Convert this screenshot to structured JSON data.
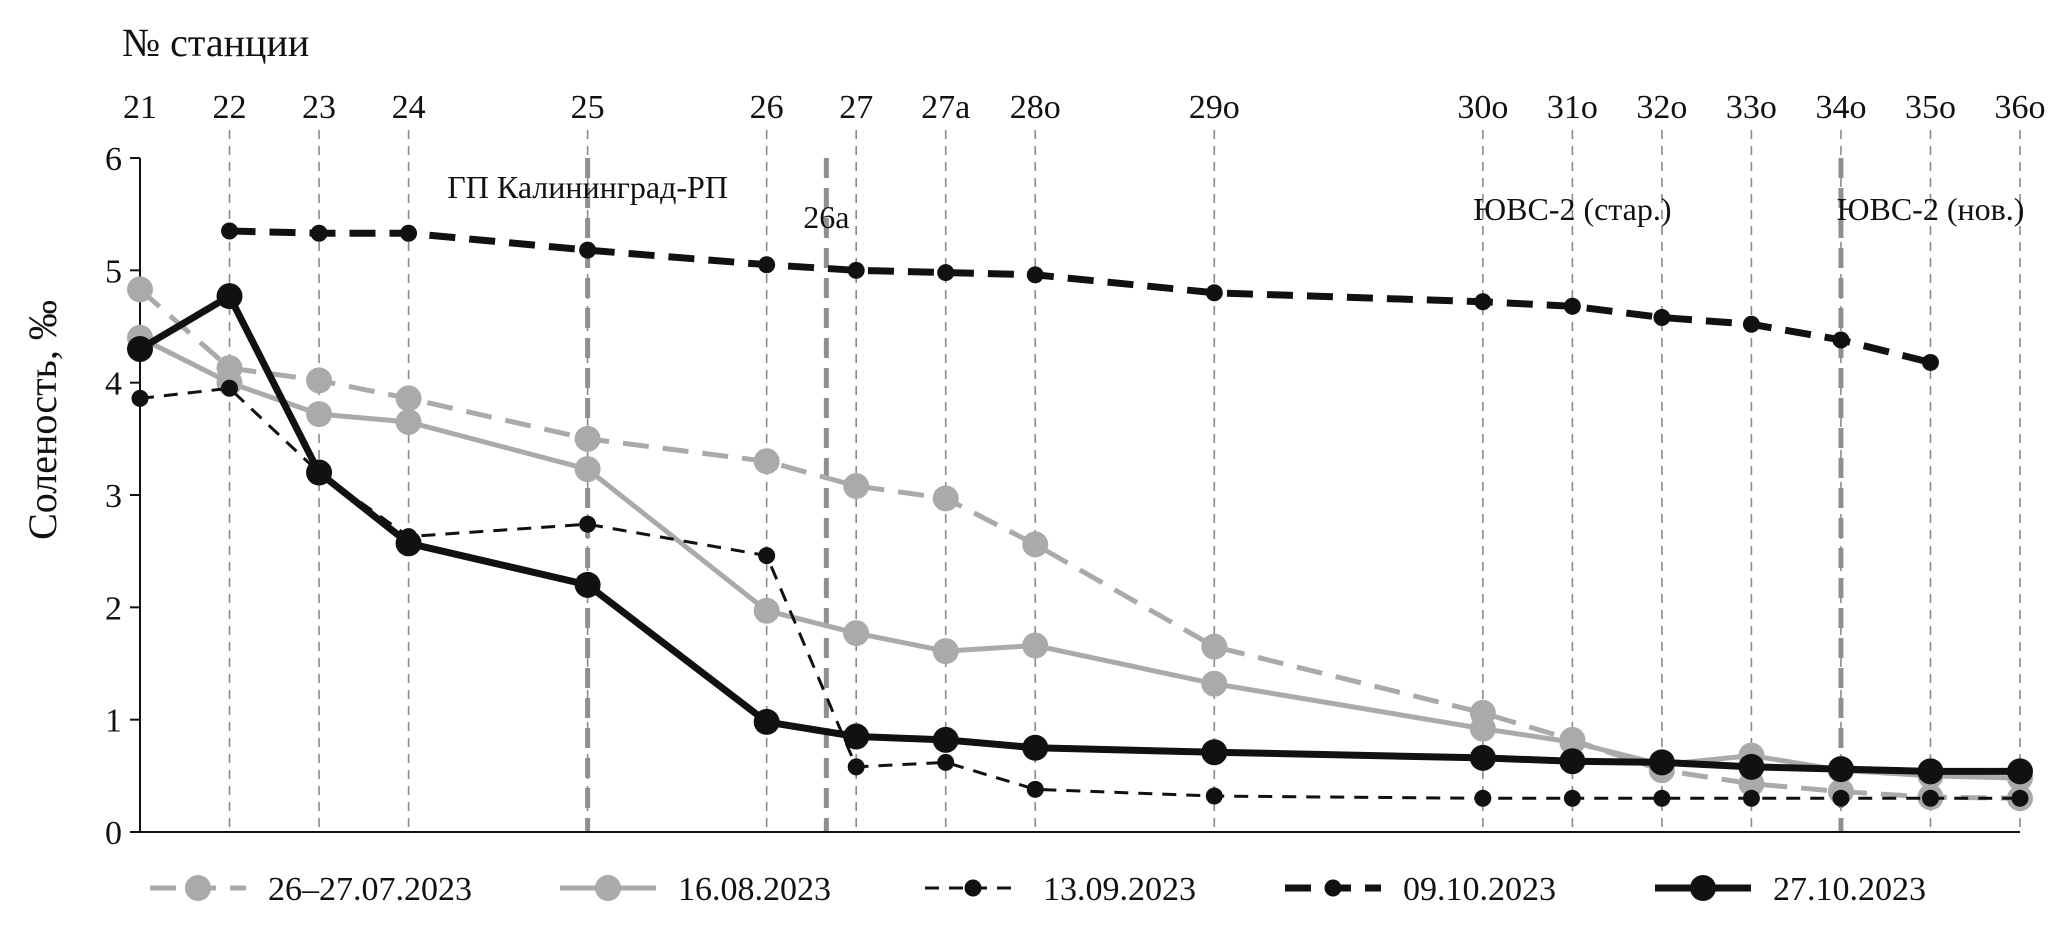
{
  "chart_data": {
    "type": "line",
    "xaxis_title": "№ станции",
    "ylabel": "Соленость, ‰",
    "ylim": [
      0,
      6
    ],
    "yticks": [
      "0",
      "1",
      "2",
      "3",
      "4",
      "5",
      "6"
    ],
    "station_dist_km": [
      0,
      6,
      12,
      18,
      30,
      42,
      48,
      54,
      60,
      72,
      90,
      96,
      102,
      108,
      114,
      120,
      126
    ],
    "stations": [
      "21",
      "22",
      "23",
      "24",
      "25",
      "26",
      "27",
      "27а",
      "28о",
      "29о",
      "30о",
      "31о",
      "32о",
      "33о",
      "34о",
      "35о",
      "36о"
    ],
    "annotations": [
      {
        "text": "ГП Калининград-РП",
        "x": 30
      },
      {
        "text": "26а",
        "x": 46
      },
      {
        "text": "ЮВС-2 (стар.)",
        "x": 96
      },
      {
        "text": "ЮВС-2 (нов.)",
        "x": 120
      }
    ],
    "thick_markers_x": [
      30,
      46,
      114
    ],
    "series": [
      {
        "name": "26–27.07.2023",
        "color": "#aaaaaa",
        "dash": "dashed",
        "marker": "large",
        "width": "medium",
        "values": [
          4.83,
          4.13,
          4.02,
          3.86,
          3.5,
          3.3,
          3.08,
          2.97,
          2.56,
          1.65,
          1.06,
          0.82,
          0.55,
          0.43,
          0.36,
          0.31,
          0.3
        ]
      },
      {
        "name": "16.08.2023",
        "color": "#aaaaaa",
        "dash": "solid",
        "marker": "large",
        "width": "medium",
        "values": [
          4.4,
          4.0,
          3.72,
          3.65,
          3.23,
          1.97,
          1.77,
          1.61,
          1.66,
          1.32,
          0.92,
          0.8,
          0.6,
          0.68,
          0.55,
          0.5,
          0.48
        ]
      },
      {
        "name": "13.09.2023",
        "color": "#111111",
        "dash": "short-dashed",
        "marker": "small",
        "width": "thin",
        "values": [
          3.86,
          3.95,
          3.2,
          2.63,
          2.74,
          2.46,
          0.58,
          0.62,
          0.38,
          0.32,
          0.3,
          0.3,
          0.3,
          0.3,
          0.3,
          0.3,
          0.3
        ]
      },
      {
        "name": "09.10.2023",
        "color": "#111111",
        "dash": "dashed",
        "marker": "small",
        "width": "thick",
        "values": [
          null,
          5.35,
          5.33,
          5.33,
          5.18,
          5.05,
          5.0,
          4.98,
          4.96,
          4.8,
          4.72,
          4.68,
          4.58,
          4.52,
          4.38,
          4.18,
          null
        ]
      },
      {
        "name": "27.10.2023",
        "color": "#111111",
        "dash": "solid",
        "marker": "large",
        "width": "thick",
        "values": [
          4.3,
          4.77,
          3.2,
          2.57,
          2.2,
          0.98,
          0.85,
          0.82,
          0.75,
          0.71,
          0.66,
          0.63,
          0.62,
          0.58,
          0.56,
          0.54,
          0.54
        ]
      }
    ]
  }
}
